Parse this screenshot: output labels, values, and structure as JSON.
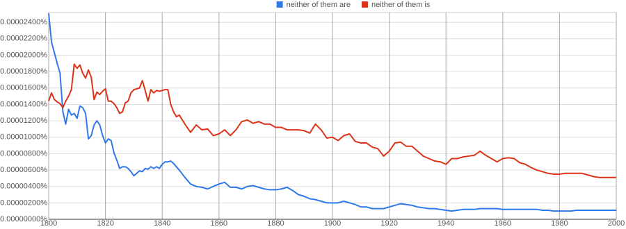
{
  "chart_data": {
    "type": "line",
    "x": [
      1800,
      1801,
      1802,
      1803,
      1804,
      1805,
      1806,
      1807,
      1808,
      1809,
      1810,
      1811,
      1812,
      1813,
      1814,
      1815,
      1816,
      1817,
      1818,
      1819,
      1820,
      1821,
      1822,
      1823,
      1824,
      1825,
      1826,
      1827,
      1828,
      1829,
      1830,
      1831,
      1832,
      1833,
      1834,
      1835,
      1836,
      1837,
      1838,
      1839,
      1840,
      1841,
      1842,
      1843,
      1844,
      1845,
      1846,
      1848,
      1850,
      1852,
      1854,
      1856,
      1858,
      1860,
      1862,
      1864,
      1866,
      1868,
      1870,
      1872,
      1874,
      1876,
      1878,
      1880,
      1882,
      1884,
      1886,
      1888,
      1890,
      1892,
      1894,
      1896,
      1898,
      1900,
      1902,
      1904,
      1906,
      1908,
      1910,
      1912,
      1914,
      1916,
      1918,
      1920,
      1922,
      1924,
      1926,
      1928,
      1930,
      1932,
      1934,
      1936,
      1938,
      1940,
      1942,
      1944,
      1946,
      1948,
      1950,
      1952,
      1954,
      1956,
      1958,
      1960,
      1962,
      1964,
      1966,
      1968,
      1970,
      1972,
      1974,
      1976,
      1978,
      1980,
      1982,
      1984,
      1986,
      1988,
      1990,
      1992,
      1994,
      1996,
      1998,
      2000
    ],
    "series": [
      {
        "name": "neither of them are",
        "color": "#2f78ea",
        "values": [
          2.51e-05,
          2.16e-05,
          2.03e-05,
          1.9e-05,
          1.78e-05,
          1.31e-05,
          1.16e-05,
          1.34e-05,
          1.27e-05,
          1.29e-05,
          1.23e-05,
          1.38e-05,
          1.36e-05,
          1.29e-05,
          9.8e-06,
          1.02e-05,
          1.15e-05,
          1.2e-05,
          1.15e-05,
          1.02e-05,
          9.3e-06,
          9.8e-06,
          9.6e-06,
          8.1e-06,
          7.2e-06,
          6.2e-06,
          6.4e-06,
          6.4e-06,
          6.2e-06,
          5.8e-06,
          5.3e-06,
          5.6e-06,
          5.9e-06,
          5.8e-06,
          6.2e-06,
          6.1e-06,
          6.4e-06,
          6.2e-06,
          6.4e-06,
          6.2e-06,
          6.7e-06,
          7e-06,
          7e-06,
          7.1e-06,
          6.8e-06,
          6.4e-06,
          6e-06,
          5.1e-06,
          4.3e-06,
          4e-06,
          3.9e-06,
          3.7e-06,
          4e-06,
          4.3e-06,
          4.5e-06,
          3.9e-06,
          3.9e-06,
          3.7e-06,
          4e-06,
          4.1e-06,
          3.9e-06,
          3.7e-06,
          3.6e-06,
          3.6e-06,
          3.7e-06,
          3.9e-06,
          3.5e-06,
          3e-06,
          2.8e-06,
          2.5e-06,
          2.4e-06,
          2.2e-06,
          2e-06,
          2e-06,
          2e-06,
          2.2e-06,
          2e-06,
          1.8e-06,
          1.5e-06,
          1.5e-06,
          1.3e-06,
          1.3e-06,
          1.3e-06,
          1.5e-06,
          1.7e-06,
          1.9e-06,
          1.8e-06,
          1.7e-06,
          1.5e-06,
          1.4e-06,
          1.3e-06,
          1.3e-06,
          1.2e-06,
          1.1e-06,
          1e-06,
          1.1e-06,
          1.2e-06,
          1.2e-06,
          1.2e-06,
          1.3e-06,
          1.3e-06,
          1.3e-06,
          1.3e-06,
          1.2e-06,
          1.2e-06,
          1.2e-06,
          1.2e-06,
          1.2e-06,
          1.2e-06,
          1.2e-06,
          1.1e-06,
          1.1e-06,
          1e-06,
          1e-06,
          1e-06,
          1e-06,
          1.1e-06,
          1.1e-06,
          1.1e-06,
          1.1e-06,
          1.1e-06,
          1.1e-06,
          1.1e-06,
          1.1e-06
        ]
      },
      {
        "name": "neither of them is",
        "color": "#dd3318",
        "values": [
          1.44e-05,
          1.54e-05,
          1.46e-05,
          1.43e-05,
          1.41e-05,
          1.36e-05,
          1.44e-05,
          1.5e-05,
          1.58e-05,
          1.89e-05,
          1.84e-05,
          1.88e-05,
          1.78e-05,
          1.72e-05,
          1.82e-05,
          1.73e-05,
          1.46e-05,
          1.55e-05,
          1.52e-05,
          1.56e-05,
          1.59e-05,
          1.44e-05,
          1.44e-05,
          1.41e-05,
          1.36e-05,
          1.29e-05,
          1.31e-05,
          1.42e-05,
          1.44e-05,
          1.54e-05,
          1.58e-05,
          1.59e-05,
          1.6e-05,
          1.69e-05,
          1.57e-05,
          1.44e-05,
          1.58e-05,
          1.54e-05,
          1.57e-05,
          1.56e-05,
          1.57e-05,
          1.58e-05,
          1.58e-05,
          1.4e-05,
          1.31e-05,
          1.25e-05,
          1.27e-05,
          1.16e-05,
          1.06e-05,
          1.15e-05,
          1.09e-05,
          1.1e-05,
          1.02e-05,
          1.04e-05,
          1.09e-05,
          1.02e-05,
          1.09e-05,
          1.19e-05,
          1.21e-05,
          1.17e-05,
          1.19e-05,
          1.16e-05,
          1.16e-05,
          1.12e-05,
          1.12e-05,
          1.09e-05,
          1.09e-05,
          1.09e-05,
          1.08e-05,
          1.05e-05,
          1.16e-05,
          1.09e-05,
          9.9e-06,
          1e-05,
          9.6e-06,
          1.02e-05,
          1.04e-05,
          9.5e-06,
          9.3e-06,
          9.3e-06,
          8.8e-06,
          8.6e-06,
          7.7e-06,
          8.3e-06,
          9.3e-06,
          9.4e-06,
          8.9e-06,
          8.9e-06,
          8.3e-06,
          7.7e-06,
          7.4e-06,
          7.1e-06,
          7e-06,
          6.7e-06,
          7.4e-06,
          7.4e-06,
          7.6e-06,
          7.7e-06,
          7.8e-06,
          8.3e-06,
          7.8e-06,
          7.4e-06,
          7e-06,
          7.4e-06,
          7.5e-06,
          7.4e-06,
          6.9e-06,
          6.7e-06,
          6.3e-06,
          6e-06,
          5.8e-06,
          5.6e-06,
          5.5e-06,
          5.5e-06,
          5.6e-06,
          5.6e-06,
          5.6e-06,
          5.6e-06,
          5.4e-06,
          5.2e-06,
          5.1e-06,
          5.1e-06,
          5.1e-06,
          5.1e-06
        ]
      }
    ],
    "xlim": [
      1800,
      2000
    ],
    "xticks": [
      1800,
      1820,
      1840,
      1860,
      1880,
      1900,
      1920,
      1940,
      1960,
      1980,
      2000
    ],
    "ylim": [
      0,
      2.52e-05
    ],
    "yticks": [
      {
        "value": 0,
        "label": "0.00000000%"
      },
      {
        "value": 2e-06,
        "label": "0.00000200%"
      },
      {
        "value": 4e-06,
        "label": "0.00000400%"
      },
      {
        "value": 6e-06,
        "label": "0.00000600%"
      },
      {
        "value": 8e-06,
        "label": "0.00000800%"
      },
      {
        "value": 1e-05,
        "label": "0.00001000%"
      },
      {
        "value": 1.2e-05,
        "label": "0.00001200%"
      },
      {
        "value": 1.4e-05,
        "label": "0.00001400%"
      },
      {
        "value": 1.6e-05,
        "label": "0.00001600%"
      },
      {
        "value": 1.8e-05,
        "label": "0.00001800%"
      },
      {
        "value": 2e-05,
        "label": "0.00002000%"
      },
      {
        "value": 2.2e-05,
        "label": "0.00002200%"
      },
      {
        "value": 2.4e-05,
        "label": "0.00002400%"
      }
    ],
    "grid": true,
    "legend": "top"
  }
}
